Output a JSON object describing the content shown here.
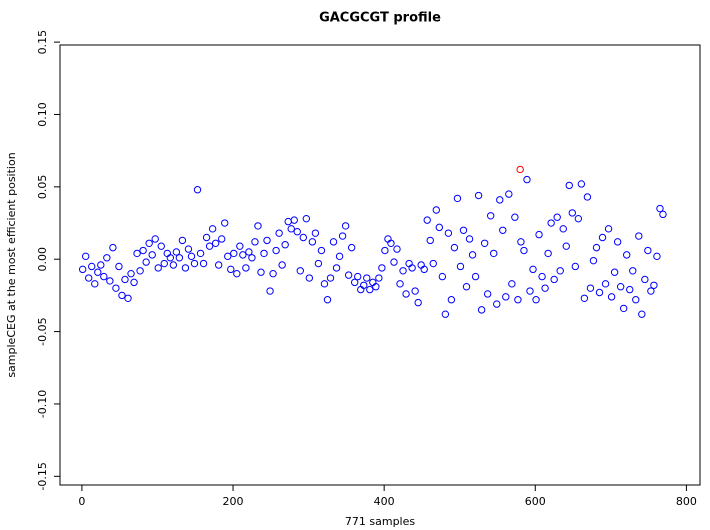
{
  "chart_data": {
    "type": "scatter",
    "title": "GACGCGT profile",
    "x_label": "771 samples",
    "y_label": "sampleCEG at the most efficient position",
    "xlim": [
      -29,
      818
    ],
    "ylim": [
      -0.156,
      0.148
    ],
    "xticks": [
      0,
      200,
      400,
      600,
      800
    ],
    "yticks": [
      -0.15,
      {
        "value": -0.1,
        "label": "-0.10"
      },
      -0.05,
      {
        "value": 0,
        "label": "0.00"
      },
      0.05,
      {
        "value": 0.1,
        "label": "0.10"
      },
      0.15
    ],
    "series": [
      {
        "color": "#0000ff",
        "x": [
          1,
          5,
          9,
          13,
          17,
          21,
          25,
          29,
          33,
          37,
          41,
          45,
          49,
          53,
          57,
          61,
          65,
          69,
          73,
          77,
          81,
          85,
          89,
          93,
          97,
          101,
          105,
          109,
          113,
          117,
          121,
          125,
          129,
          133,
          137,
          141,
          145,
          149,
          153,
          157,
          161,
          165,
          169,
          173,
          177,
          181,
          185,
          189,
          193,
          197,
          201,
          205,
          209,
          213,
          217,
          221,
          225,
          229,
          233,
          237,
          241,
          245,
          249,
          253,
          257,
          261,
          265,
          269,
          273,
          277,
          281,
          285,
          289,
          293,
          297,
          301,
          305,
          309,
          313,
          317,
          321,
          325,
          329,
          333,
          337,
          341,
          345,
          349,
          353,
          357,
          361,
          365,
          369,
          373,
          377,
          381,
          385,
          389,
          393,
          397,
          401,
          405,
          409,
          413,
          417,
          421,
          425,
          429,
          433,
          437,
          441,
          445,
          449,
          453,
          457,
          461,
          465,
          469,
          473,
          477,
          481,
          485,
          489,
          493,
          497,
          501,
          505,
          509,
          513,
          517,
          521,
          525,
          529,
          533,
          537,
          541,
          545,
          549,
          553,
          557,
          561,
          565,
          569,
          573,
          577,
          581,
          585,
          589,
          593,
          597,
          601,
          605,
          609,
          613,
          617,
          621,
          625,
          629,
          633,
          637,
          641,
          645,
          649,
          653,
          657,
          661,
          665,
          669,
          673,
          677,
          681,
          685,
          689,
          693,
          697,
          701,
          705,
          709,
          713,
          717,
          721,
          725,
          729,
          733,
          737,
          741,
          745,
          749,
          753,
          757,
          761,
          765,
          769
        ],
        "values": [
          -0.007,
          0.002,
          -0.013,
          -0.005,
          -0.017,
          -0.009,
          -0.004,
          -0.012,
          0.001,
          -0.015,
          0.008,
          -0.02,
          -0.005,
          -0.025,
          -0.014,
          -0.027,
          -0.01,
          -0.016,
          0.004,
          -0.008,
          0.006,
          -0.002,
          0.011,
          0.003,
          0.014,
          -0.006,
          0.009,
          -0.003,
          0.004,
          0.001,
          -0.004,
          0.005,
          0.001,
          0.013,
          -0.006,
          0.007,
          0.002,
          -0.003,
          0.048,
          0.004,
          -0.003,
          0.015,
          0.009,
          0.021,
          0.011,
          -0.004,
          0.014,
          0.025,
          0.002,
          -0.007,
          0.004,
          -0.01,
          0.009,
          0.003,
          -0.006,
          0.005,
          0.001,
          0.012,
          0.023,
          -0.009,
          0.004,
          0.013,
          -0.022,
          -0.01,
          0.006,
          0.018,
          -0.004,
          0.01,
          0.026,
          0.021,
          0.027,
          0.019,
          -0.008,
          0.015,
          0.028,
          -0.013,
          0.012,
          0.018,
          -0.003,
          0.006,
          -0.017,
          -0.028,
          -0.013,
          0.012,
          -0.006,
          0.002,
          0.016,
          0.023,
          -0.011,
          0.008,
          -0.016,
          -0.012,
          -0.021,
          -0.018,
          -0.013,
          -0.021,
          -0.016,
          -0.019,
          -0.013,
          -0.006,
          0.006,
          0.014,
          0.011,
          -0.002,
          0.007,
          -0.017,
          -0.008,
          -0.024,
          -0.003,
          -0.006,
          -0.022,
          -0.03,
          -0.004,
          -0.007,
          0.027,
          0.013,
          -0.003,
          0.034,
          0.022,
          -0.012,
          -0.038,
          0.018,
          -0.028,
          0.008,
          0.042,
          -0.005,
          0.02,
          -0.019,
          0.014,
          0.003,
          -0.012,
          0.044,
          -0.035,
          0.011,
          -0.024,
          0.03,
          0.004,
          -0.031,
          0.041,
          0.02,
          -0.026,
          0.045,
          -0.017,
          0.029,
          -0.028,
          0.012,
          0.006,
          0.055,
          -0.022,
          -0.007,
          -0.028,
          0.017,
          -0.012,
          -0.02,
          0.004,
          0.025,
          -0.014,
          0.029,
          -0.008,
          0.021,
          0.009,
          0.051,
          0.032,
          -0.005,
          0.028,
          0.052,
          -0.027,
          0.043,
          -0.02,
          -0.001,
          0.008,
          -0.023,
          0.015,
          -0.017,
          0.021,
          -0.026,
          -0.009,
          0.012,
          -0.019,
          -0.034,
          0.003,
          -0.021,
          -0.008,
          -0.028,
          0.016,
          -0.038,
          -0.014,
          0.006,
          -0.022,
          -0.018,
          0.002,
          0.035,
          0.031
        ]
      },
      {
        "color": "#ff0000",
        "x": [
          580
        ],
        "values": [
          0.062
        ]
      }
    ]
  }
}
